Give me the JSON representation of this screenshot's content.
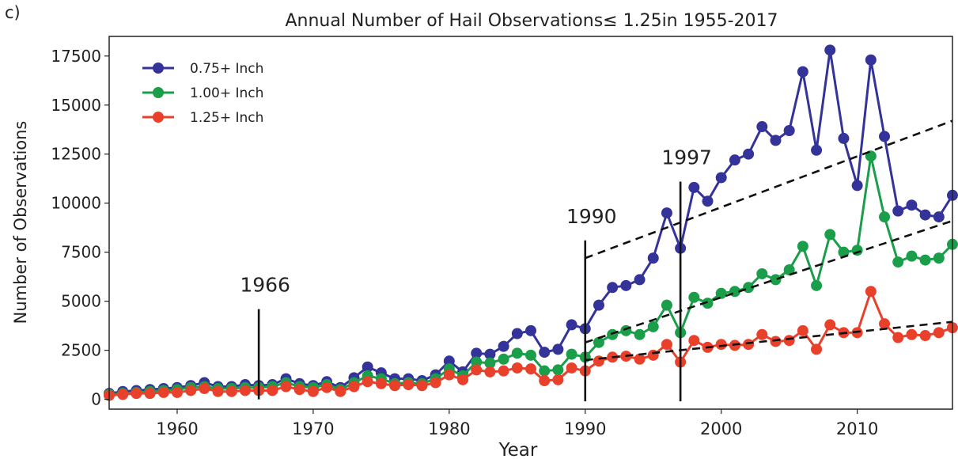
{
  "panel_label": "c)",
  "chart_data": {
    "type": "line",
    "title": "Annual Number of Hail Observations≤ 1.25in  1955-2017",
    "xlabel": "Year",
    "ylabel": "Number of Observations",
    "xlim": [
      1955,
      2017
    ],
    "ylim": [
      -500,
      18500
    ],
    "xticks": [
      1960,
      1970,
      1980,
      1990,
      2000,
      2010
    ],
    "yticks": [
      0,
      2500,
      5000,
      7500,
      10000,
      12500,
      15000,
      17500
    ],
    "grid": false,
    "legend_position": "top-left",
    "x": [
      1955,
      1956,
      1957,
      1958,
      1959,
      1960,
      1961,
      1962,
      1963,
      1964,
      1965,
      1966,
      1967,
      1968,
      1969,
      1970,
      1971,
      1972,
      1973,
      1974,
      1975,
      1976,
      1977,
      1978,
      1979,
      1980,
      1981,
      1982,
      1983,
      1984,
      1985,
      1986,
      1987,
      1988,
      1989,
      1990,
      1991,
      1992,
      1993,
      1994,
      1995,
      1996,
      1997,
      1998,
      1999,
      2000,
      2001,
      2002,
      2003,
      2004,
      2005,
      2006,
      2007,
      2008,
      2009,
      2010,
      2011,
      2012,
      2013,
      2014,
      2015,
      2016,
      2017
    ],
    "series": [
      {
        "name": "0.75+ Inch",
        "color": "#33339a",
        "values": [
          300,
          400,
          450,
          500,
          550,
          600,
          700,
          850,
          650,
          650,
          750,
          700,
          750,
          1050,
          800,
          700,
          900,
          600,
          1100,
          1650,
          1350,
          1050,
          1050,
          950,
          1250,
          1950,
          1400,
          2350,
          2300,
          2700,
          3350,
          3500,
          2400,
          2550,
          3800,
          3600,
          4800,
          5700,
          5800,
          6100,
          7200,
          9500,
          7700,
          10800,
          10100,
          11300,
          12200,
          12500,
          13900,
          13200,
          13700,
          16700,
          12700,
          17800,
          13300,
          10900,
          17300,
          13400,
          9600,
          9900,
          9400,
          9300,
          10400
        ]
      },
      {
        "name": "1.00+ Inch",
        "color": "#1a9e4a",
        "values": [
          250,
          300,
          350,
          400,
          450,
          500,
          600,
          650,
          550,
          550,
          600,
          600,
          650,
          850,
          650,
          600,
          750,
          500,
          850,
          1200,
          1050,
          800,
          850,
          800,
          1050,
          1550,
          1200,
          1900,
          1850,
          2050,
          2350,
          2250,
          1450,
          1500,
          2300,
          2150,
          2900,
          3300,
          3500,
          3300,
          3700,
          4800,
          3400,
          5200,
          4900,
          5400,
          5500,
          5700,
          6400,
          6100,
          6600,
          7800,
          5800,
          8400,
          7500,
          7600,
          12400,
          9300,
          7000,
          7300,
          7100,
          7200,
          7900
        ]
      },
      {
        "name": "1.25+ Inch",
        "color": "#e8402a",
        "values": [
          200,
          250,
          300,
          300,
          350,
          350,
          450,
          550,
          400,
          400,
          450,
          450,
          450,
          650,
          500,
          400,
          600,
          400,
          650,
          900,
          800,
          700,
          750,
          700,
          850,
          1250,
          1000,
          1500,
          1400,
          1450,
          1600,
          1550,
          950,
          1000,
          1600,
          1450,
          1950,
          2150,
          2200,
          2050,
          2250,
          2800,
          1900,
          3000,
          2650,
          2800,
          2750,
          2800,
          3300,
          2950,
          3000,
          3500,
          2550,
          3800,
          3400,
          3400,
          5500,
          3850,
          3150,
          3300,
          3250,
          3400,
          3650
        ]
      }
    ],
    "trend_lines": [
      {
        "x": [
          1990,
          2017
        ],
        "y": [
          7200,
          14200
        ]
      },
      {
        "x": [
          1990,
          2017
        ],
        "y": [
          2900,
          9100
        ]
      },
      {
        "x": [
          1990,
          2017
        ],
        "y": [
          2000,
          3950
        ]
      }
    ],
    "annotations": [
      {
        "label": "1966",
        "x": 1966,
        "y_bottom": 0,
        "y_top": 4600
      },
      {
        "label": "1990",
        "x": 1990,
        "y_bottom": -100,
        "y_top": 8100
      },
      {
        "label": "1997",
        "x": 1997,
        "y_bottom": -100,
        "y_top": 11100
      }
    ]
  }
}
